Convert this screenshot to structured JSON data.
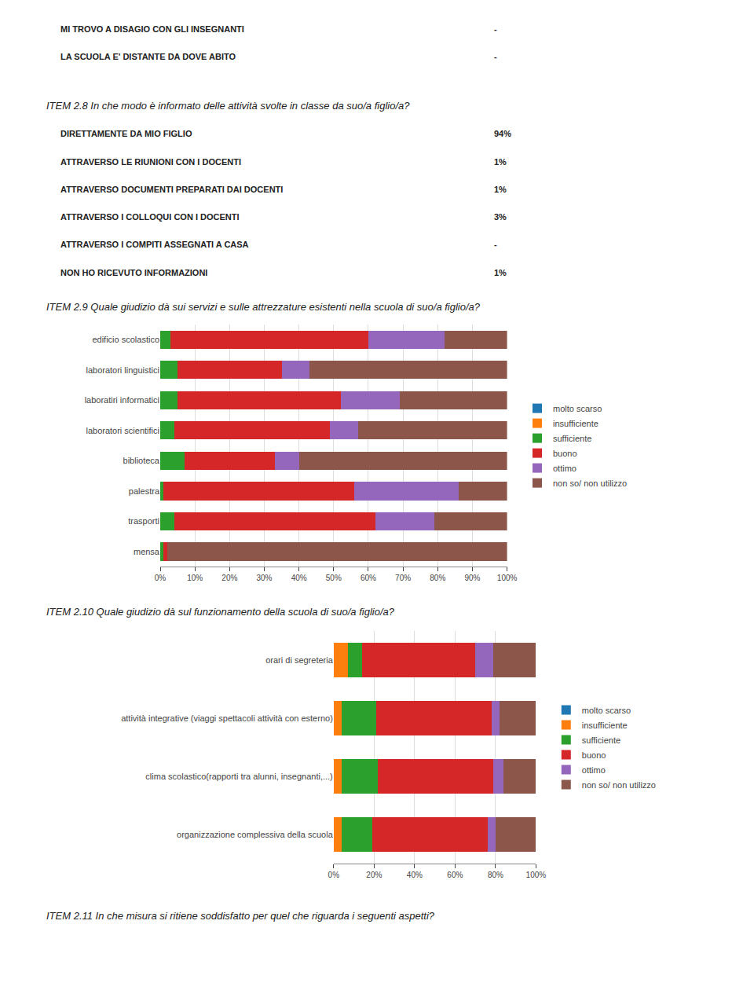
{
  "chart_data": [
    {
      "type": "bar",
      "orientation": "horizontal",
      "stacked": true,
      "grid": true,
      "legend": "right",
      "title": "ITEM 2.9 Quale giudizio dà sui servizi e sulle attrezzature esistenti nella scuola di suo/a figlio/a?",
      "annotations": [
        [
          "MI TROVO A DISAGIO CON GLI INSEGNANTI",
          "-"
        ],
        [
          "LA SCUOLA E' DISTANTE DA DOVE ABITO",
          "-"
        ],
        [
          "ITEM 2.8 In che modo è informato delle attività svolte in classe da suo/a figlio/a?"
        ],
        [
          "DIRETTAMENTE DA MIO FIGLIO",
          "94%"
        ],
        [
          "ATTRAVERSO LE RIUNIONI CON I DOCENTI",
          "1%"
        ],
        [
          "ATTRAVERSO DOCUMENTI PREPARATI DAI DOCENTI",
          "1%"
        ],
        [
          "ATTRAVERSO I COLLOQUI CON I DOCENTI",
          "3%"
        ],
        [
          "ATTRAVERSO I COMPITI ASSEGNATI A CASA",
          "-"
        ],
        [
          "NON HO RICEVUTO INFORMAZIONI",
          "1%"
        ]
      ],
      "categories": [
        "edificio scolastico",
        "laboratori linguistici",
        "laboratiri informatici",
        "laboratori scientifici",
        "biblioteca",
        "palestra",
        "trasporti",
        "mensa"
      ],
      "series": [
        {
          "name": "molto scarso",
          "values": [
            0,
            0,
            0,
            0,
            0,
            0,
            0,
            0
          ]
        },
        {
          "name": "insufficiente",
          "values": [
            0,
            0,
            0,
            0,
            0,
            0,
            0,
            0
          ]
        },
        {
          "name": "sufficiente",
          "values": [
            3,
            5,
            5,
            4,
            7,
            1,
            4,
            1
          ]
        },
        {
          "name": "buono",
          "values": [
            57,
            30,
            47,
            45,
            26,
            55,
            58,
            1
          ]
        },
        {
          "name": "ottimo",
          "values": [
            22,
            8,
            17,
            8,
            7,
            30,
            17,
            0
          ]
        },
        {
          "name": "non so/ non utilizzo",
          "values": [
            18,
            57,
            31,
            43,
            60,
            14,
            21,
            98
          ]
        }
      ],
      "xlim": [
        0,
        100
      ],
      "xticks": [
        {
          "value": 0,
          "label": "0%"
        },
        {
          "value": 10,
          "label": "10%"
        },
        {
          "value": 20,
          "label": "20%"
        },
        {
          "value": 30,
          "label": "30%"
        },
        {
          "value": 40,
          "label": "40%"
        },
        {
          "value": 50,
          "label": "50%"
        },
        {
          "value": 60,
          "label": "60%"
        },
        {
          "value": 70,
          "label": "70%"
        },
        {
          "value": 80,
          "label": "80%"
        },
        {
          "value": 90,
          "label": "90%"
        },
        {
          "value": 100,
          "label": "100%"
        }
      ]
    },
    {
      "type": "bar",
      "orientation": "horizontal",
      "stacked": true,
      "grid": true,
      "legend": "right",
      "title": "ITEM 2.10 Quale giudizio dà sul funzionamento della scuola di suo/a figlio/a?",
      "annotations": [
        [
          "ITEM 2.11 In che misura si ritiene soddisfatto per quel che riguarda i seguenti aspetti?"
        ]
      ],
      "categories": [
        "orari di segreteria",
        "attività integrative (viaggi spettacoli attività con esterno)",
        "clima scolastico(rapporti tra alunni, insegnanti,...)",
        "organizzazione complessiva della scuola"
      ],
      "series": [
        {
          "name": "molto scarso",
          "values": [
            0,
            0,
            0,
            0
          ]
        },
        {
          "name": "insufficiente",
          "values": [
            7,
            4,
            4,
            4
          ]
        },
        {
          "name": "sufficiente",
          "values": [
            7,
            17,
            18,
            15
          ]
        },
        {
          "name": "buono",
          "values": [
            56,
            57,
            57,
            57
          ]
        },
        {
          "name": "ottimo",
          "values": [
            9,
            4,
            5,
            4
          ]
        },
        {
          "name": "non so/ non utilizzo",
          "values": [
            21,
            18,
            16,
            20
          ]
        }
      ],
      "xlim": [
        0,
        100
      ],
      "xticks": [
        {
          "value": 0,
          "label": "0%"
        },
        {
          "value": 20,
          "label": "20%"
        },
        {
          "value": 40,
          "label": "40%"
        },
        {
          "value": 60,
          "label": "60%"
        },
        {
          "value": 80,
          "label": "80%"
        },
        {
          "value": 100,
          "label": "100%"
        }
      ]
    }
  ]
}
